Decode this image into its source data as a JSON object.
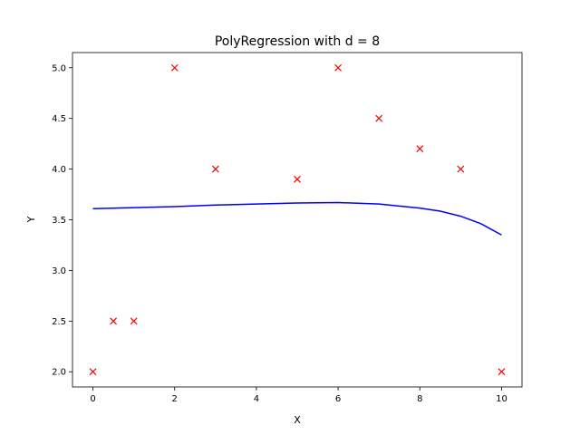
{
  "chart_data": {
    "type": "scatter",
    "title": "PolyRegression with d = 8",
    "xlabel": "X",
    "ylabel": "Y",
    "xlim": [
      -0.5,
      10.5
    ],
    "ylim": [
      1.85,
      5.15
    ],
    "xticks": [
      0,
      2,
      4,
      6,
      8,
      10
    ],
    "yticks": [
      2.0,
      2.5,
      3.0,
      3.5,
      4.0,
      4.5,
      5.0
    ],
    "grid": false,
    "series": [
      {
        "type": "scatter",
        "marker": "x",
        "color": "#ff0000",
        "points": [
          {
            "x": 0,
            "y": 2.0
          },
          {
            "x": 0.5,
            "y": 2.5
          },
          {
            "x": 1,
            "y": 2.5
          },
          {
            "x": 2,
            "y": 5.0
          },
          {
            "x": 3,
            "y": 4.0
          },
          {
            "x": 5,
            "y": 3.9
          },
          {
            "x": 6,
            "y": 5.0
          },
          {
            "x": 7,
            "y": 4.5
          },
          {
            "x": 8,
            "y": 4.2
          },
          {
            "x": 9,
            "y": 4.0
          },
          {
            "x": 10,
            "y": 2.0
          }
        ]
      },
      {
        "type": "line",
        "color": "#0000ff",
        "points": [
          {
            "x": 0,
            "y": 3.61
          },
          {
            "x": 1,
            "y": 3.62
          },
          {
            "x": 2,
            "y": 3.63
          },
          {
            "x": 3,
            "y": 3.645
          },
          {
            "x": 4,
            "y": 3.655
          },
          {
            "x": 5,
            "y": 3.665
          },
          {
            "x": 6,
            "y": 3.67
          },
          {
            "x": 7,
            "y": 3.655
          },
          {
            "x": 8,
            "y": 3.615
          },
          {
            "x": 8.5,
            "y": 3.585
          },
          {
            "x": 9,
            "y": 3.535
          },
          {
            "x": 9.5,
            "y": 3.46
          },
          {
            "x": 10,
            "y": 3.35
          }
        ]
      }
    ]
  }
}
